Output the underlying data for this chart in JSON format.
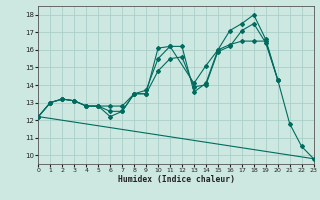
{
  "xlabel": "Humidex (Indice chaleur)",
  "xlim": [
    0,
    23
  ],
  "ylim": [
    9.5,
    18.5
  ],
  "yticks": [
    10,
    11,
    12,
    13,
    14,
    15,
    16,
    17,
    18
  ],
  "xticks": [
    0,
    1,
    2,
    3,
    4,
    5,
    6,
    7,
    8,
    9,
    10,
    11,
    12,
    13,
    14,
    15,
    16,
    17,
    18,
    19,
    20,
    21,
    22,
    23
  ],
  "bg_color": "#cce8e1",
  "grid_color": "#aad0c8",
  "line_color": "#006b5e",
  "series": [
    {
      "x": [
        0,
        1,
        2,
        3,
        4,
        5,
        6,
        7,
        8,
        9,
        10,
        11,
        13,
        14,
        15,
        16,
        17,
        18,
        19,
        20,
        21,
        22,
        23
      ],
      "y": [
        12.2,
        13.0,
        13.2,
        13.1,
        12.8,
        12.8,
        12.2,
        12.5,
        13.5,
        13.5,
        16.1,
        16.2,
        14.1,
        15.1,
        16.0,
        17.1,
        17.5,
        18.0,
        16.6,
        14.3,
        11.8,
        10.5,
        9.8
      ],
      "marker": true
    },
    {
      "x": [
        0,
        1,
        2,
        3,
        4,
        5,
        6,
        7,
        8,
        9,
        10,
        11,
        12,
        13,
        14,
        15,
        16,
        17,
        18,
        19,
        20
      ],
      "y": [
        12.2,
        13.0,
        13.2,
        13.1,
        12.8,
        12.8,
        12.8,
        12.8,
        13.5,
        13.7,
        15.5,
        16.2,
        16.2,
        13.6,
        14.1,
        16.0,
        16.3,
        16.5,
        16.5,
        16.5,
        14.3
      ],
      "marker": true
    },
    {
      "x": [
        0,
        23
      ],
      "y": [
        12.2,
        9.8
      ],
      "marker": false
    },
    {
      "x": [
        0,
        1,
        2,
        3,
        4,
        5,
        6,
        7,
        8,
        9,
        10,
        11,
        12,
        13,
        14,
        15,
        16,
        17,
        18,
        19,
        20
      ],
      "y": [
        12.2,
        13.0,
        13.2,
        13.1,
        12.8,
        12.8,
        12.5,
        12.5,
        13.5,
        13.5,
        14.8,
        15.5,
        15.6,
        13.9,
        14.0,
        15.9,
        16.2,
        17.1,
        17.5,
        16.4,
        14.3
      ],
      "marker": true
    }
  ]
}
